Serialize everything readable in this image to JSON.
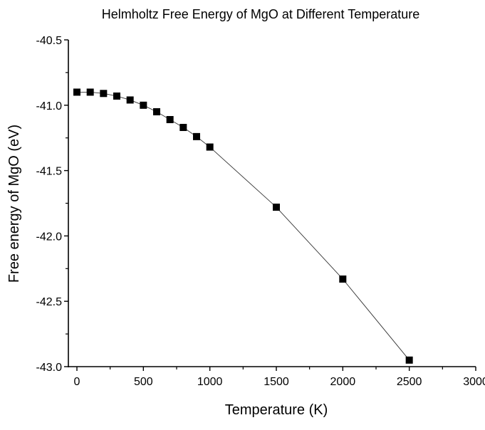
{
  "chart_data": {
    "type": "line",
    "title": "Helmholtz Free Energy of MgO at Different Temperature",
    "xlabel": "Temperature (K)",
    "ylabel": "Free energy of MgO (eV)",
    "xlim": [
      0,
      3000
    ],
    "ylim": [
      -43.0,
      -40.5
    ],
    "xticks": [
      0,
      500,
      1000,
      1500,
      2000,
      2500,
      3000
    ],
    "xtick_labels": [
      "0",
      "500",
      "1000",
      "1500",
      "2000",
      "2500",
      "3000"
    ],
    "yticks": [
      -40.5,
      -41.0,
      -41.5,
      -42.0,
      -42.5,
      -43.0
    ],
    "ytick_labels": [
      "-40.5",
      "-41.0",
      "-41.5",
      "-42.0",
      "-42.5",
      "-43.0"
    ],
    "grid": false,
    "marker": "square",
    "color": "#000000",
    "series": [
      {
        "x": [
          0,
          100,
          200,
          300,
          400,
          500,
          600,
          700,
          800,
          900,
          1000,
          1500,
          2000,
          2500
        ],
        "y": [
          -40.9,
          -40.9,
          -40.91,
          -40.93,
          -40.96,
          -41.0,
          -41.05,
          -41.11,
          -41.17,
          -41.24,
          -41.32,
          -41.78,
          -42.33,
          -42.95
        ]
      }
    ]
  }
}
